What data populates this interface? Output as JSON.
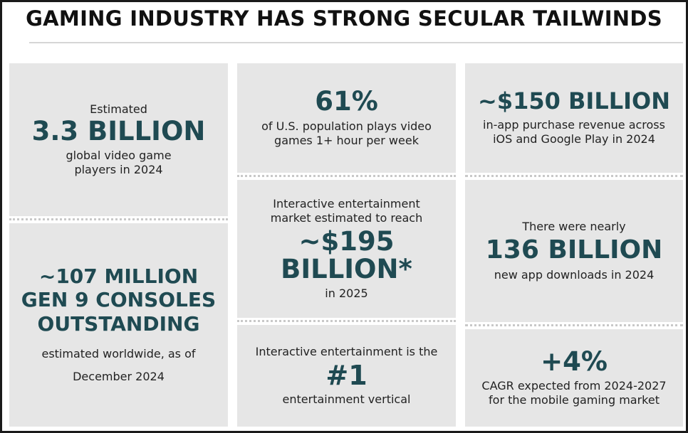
{
  "title": "GAMING INDUSTRY HAS STRONG SECULAR TAILWINDS",
  "colors": {
    "accent": "#1f4a52",
    "tile": "#e6e6e6",
    "frame": "#1a1a1a"
  },
  "tiles": {
    "players": {
      "top": "Estimated",
      "big": "3.3 BILLION",
      "bottom1": "global video game",
      "bottom2": "players in 2024"
    },
    "consoles": {
      "big1": "~107 MILLION",
      "big2": "GEN 9 CONSOLES",
      "big3": "OUTSTANDING",
      "bottom1": "estimated worldwide, as of",
      "bottom2": "December 2024"
    },
    "us_population": {
      "big": "61%",
      "bottom1": "of U.S. population plays video",
      "bottom2": "games 1+ hour per week"
    },
    "market": {
      "top1": "Interactive entertainment",
      "top2": "market estimated to reach",
      "big1": "~$195",
      "big2": "BILLION*",
      "bottom": "in 2025"
    },
    "vertical": {
      "top": "Interactive entertainment is the",
      "big": "#1",
      "bottom": "entertainment vertical"
    },
    "in_app": {
      "big": "~$150 BILLION",
      "bottom1": "in-app purchase revenue across",
      "bottom2": "iOS and Google Play in 2024"
    },
    "downloads": {
      "top": "There were nearly",
      "big": "136 BILLION",
      "bottom": "new app downloads in 2024"
    },
    "cagr": {
      "big": "+4%",
      "bottom1": "CAGR expected from 2024-2027",
      "bottom2": "for the mobile gaming market"
    }
  }
}
